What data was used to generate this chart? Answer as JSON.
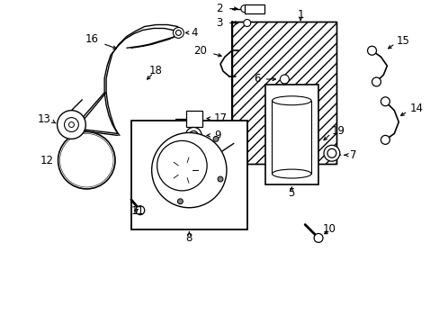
{
  "background_color": "#ffffff",
  "fig_w": 4.89,
  "fig_h": 3.6,
  "dpi": 100
}
